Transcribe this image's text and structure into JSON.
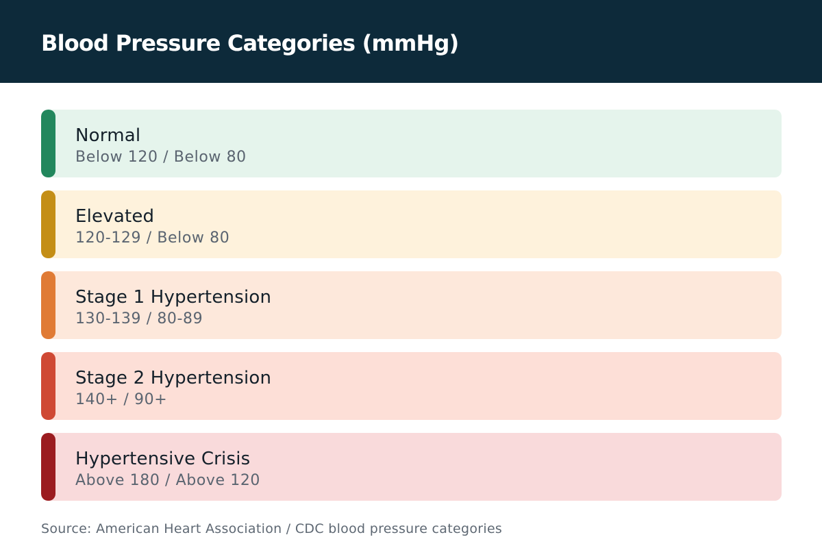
{
  "header": {
    "title": "Blood Pressure Categories (mmHg)"
  },
  "categories": [
    {
      "label": "Normal",
      "range": "Below 120 / Below 80",
      "accent": "#22875d",
      "background": "#e5f4ec"
    },
    {
      "label": "Elevated",
      "range": "120-129 / Below 80",
      "accent": "#c48e16",
      "background": "#fef2dc"
    },
    {
      "label": "Stage 1 Hypertension",
      "range": "130-139 / 80-89",
      "accent": "#e07b35",
      "background": "#fde8db"
    },
    {
      "label": "Stage 2 Hypertension",
      "range": "140+ / 90+",
      "accent": "#cf4934",
      "background": "#fddfd7"
    },
    {
      "label": "Hypertensive Crisis",
      "range": "Above 180 / Above 120",
      "accent": "#9b1c20",
      "background": "#f9dadb"
    }
  ],
  "footer": {
    "source": "Source: American Heart Association / CDC blood pressure categories"
  },
  "colors": {
    "header_background": "#0d2a3a",
    "header_text": "#ffffff",
    "title_text": "#14202a",
    "range_text": "#5a6470",
    "source_text": "#5e6873"
  }
}
